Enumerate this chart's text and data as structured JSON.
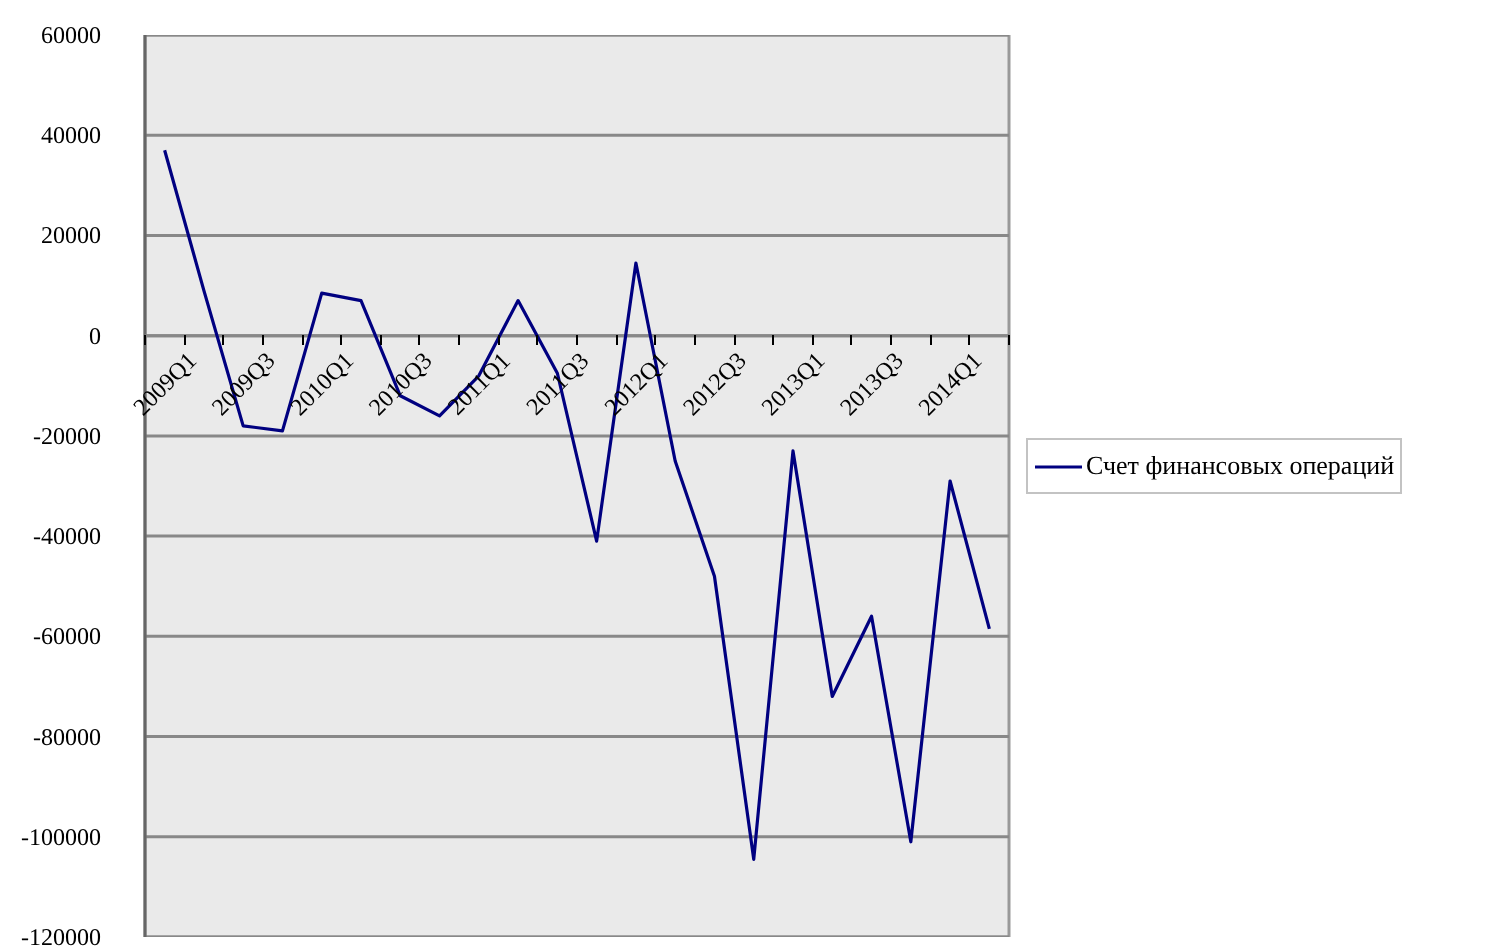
{
  "chart_data": {
    "type": "line",
    "categories": [
      "2009Q1",
      null,
      "2009Q3",
      null,
      "2010Q1",
      null,
      "2010Q3",
      null,
      "2011Q1",
      null,
      "2011Q3",
      null,
      "2012Q1",
      null,
      "2012Q3",
      null,
      "2013Q1",
      null,
      "2013Q3",
      null,
      "2014Q1",
      null
    ],
    "series": [
      {
        "name": "Счет финансовых операций",
        "color": "#000080",
        "values": [
          37000,
          9000,
          -18000,
          -19000,
          8500,
          7000,
          -12000,
          -16000,
          -8000,
          7000,
          -7500,
          -41000,
          14500,
          -25000,
          -48000,
          -104500,
          -23000,
          -72000,
          -56000,
          -101000,
          -29000,
          -58500
        ]
      }
    ],
    "ylim": [
      -120000,
      60000
    ],
    "yticks": [
      -120000,
      -100000,
      -80000,
      -60000,
      -40000,
      -20000,
      0,
      20000,
      40000,
      60000
    ],
    "grid": "y",
    "legend": "right"
  }
}
